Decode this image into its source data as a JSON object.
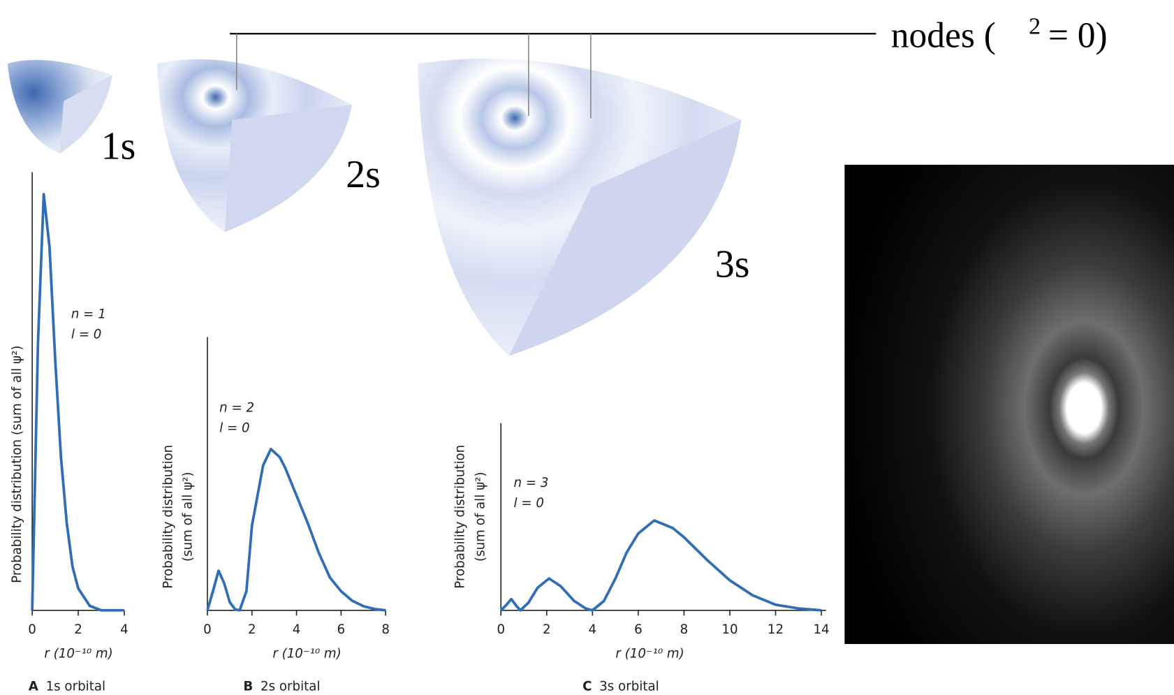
{
  "illustration": {
    "nodes_label": "nodes (",
    "nodes_sup": "2",
    "nodes_tail": "= 0)",
    "orbital_labels": [
      "1s",
      "2s",
      "3s"
    ]
  },
  "chart_data": [
    {
      "type": "line",
      "color": "#2f6db5",
      "ylabel": [
        "Probability distribution (sum of all ψ²)"
      ],
      "xlabel": "r (10⁻¹⁰ m)",
      "annotations": [
        "n = 1",
        "l = 0"
      ],
      "caption_letter": "A",
      "caption": "1s orbital",
      "x": [
        0,
        0.25,
        0.5,
        0.75,
        1,
        1.25,
        1.5,
        1.75,
        2,
        2.5,
        3,
        3.5,
        4
      ],
      "values": [
        0,
        0.61,
        0.95,
        0.83,
        0.57,
        0.35,
        0.2,
        0.1,
        0.05,
        0.01,
        0,
        0,
        0
      ],
      "xlim": [
        0,
        4
      ],
      "xticks": [
        0,
        2,
        4
      ],
      "ylim": [
        0,
        1
      ]
    },
    {
      "type": "line",
      "color": "#2f6db5",
      "ylabel": [
        "Probability distribution",
        "(sum of all ψ²)"
      ],
      "xlabel": "r (10⁻¹⁰ m)",
      "annotations": [
        "n = 2",
        "l = 0"
      ],
      "caption_letter": "B",
      "caption": "2s orbital",
      "x": [
        0,
        0.25,
        0.5,
        0.75,
        1,
        1.25,
        1.45,
        1.75,
        2,
        2.5,
        2.85,
        3.25,
        3.5,
        4,
        4.5,
        5,
        5.5,
        6,
        6.5,
        7,
        7.5,
        8
      ],
      "values": [
        0,
        0.07,
        0.145,
        0.1,
        0.03,
        0.003,
        0,
        0.07,
        0.31,
        0.53,
        0.59,
        0.56,
        0.52,
        0.42,
        0.32,
        0.21,
        0.12,
        0.07,
        0.035,
        0.015,
        0.005,
        0
      ],
      "xlim": [
        0,
        8
      ],
      "xticks": [
        0,
        2,
        4,
        6,
        8
      ],
      "ylim": [
        0,
        1
      ]
    },
    {
      "type": "line",
      "color": "#2f6db5",
      "ylabel": [
        "Probability distribution",
        "(sum of all ψ²)"
      ],
      "xlabel": "r (10⁻¹⁰ m)",
      "annotations": [
        "n = 3",
        "l = 0"
      ],
      "caption_letter": "C",
      "caption": "3s orbital",
      "x": [
        0,
        0.25,
        0.45,
        0.7,
        0.85,
        1.2,
        1.6,
        2.1,
        2.6,
        3.2,
        3.7,
        4,
        4.5,
        5,
        5.5,
        6,
        6.7,
        7.5,
        8,
        9,
        10,
        11,
        12,
        13,
        14
      ],
      "values": [
        0,
        0.03,
        0.06,
        0.02,
        0,
        0.04,
        0.12,
        0.17,
        0.13,
        0.05,
        0.01,
        0,
        0.05,
        0.17,
        0.31,
        0.41,
        0.48,
        0.44,
        0.39,
        0.27,
        0.16,
        0.08,
        0.03,
        0.01,
        0
      ],
      "xlim": [
        0,
        14.2
      ],
      "xticks": [
        0,
        2,
        4,
        6,
        8,
        10,
        12,
        14
      ],
      "ylim": [
        0,
        1
      ]
    }
  ]
}
